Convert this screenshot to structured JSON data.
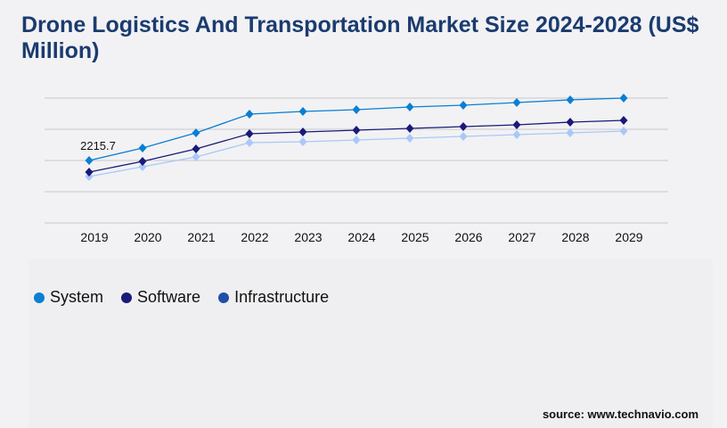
{
  "title": "Drone Logistics And Transportation Market Size 2024-2028 (US$ Million)",
  "source": "source: www.technavio.com",
  "chart_data": {
    "type": "line",
    "categories": [
      "2019",
      "2020",
      "2021",
      "2022",
      "2023",
      "2024",
      "2025",
      "2026",
      "2027",
      "2028",
      "2029"
    ],
    "series": [
      {
        "name": "System",
        "color": "#0a7fd4",
        "marker_color": "#0a7fd4",
        "values": [
          2215.7,
          2659,
          3197,
          3861,
          3956,
          4020,
          4115,
          4178,
          4273,
          4368,
          4431
        ]
      },
      {
        "name": "Software",
        "color": "#1a1a7a",
        "marker_color": "#1a1a7a",
        "values": [
          1804,
          2184,
          2627,
          3165,
          3228,
          3292,
          3355,
          3418,
          3482,
          3576,
          3640
        ]
      },
      {
        "name": "Infrastructure",
        "color": "#a9c8f8",
        "marker_color": "#1f4fa8",
        "values": [
          1646,
          1994,
          2342,
          2849,
          2880,
          2943,
          3007,
          3070,
          3133,
          3197,
          3260
        ]
      }
    ],
    "annotations": [
      {
        "category": "2019",
        "series": "System",
        "text": "2215.7"
      }
    ],
    "ylim": [
      0,
      4431
    ],
    "grid": true,
    "legend": "bottom-left"
  }
}
